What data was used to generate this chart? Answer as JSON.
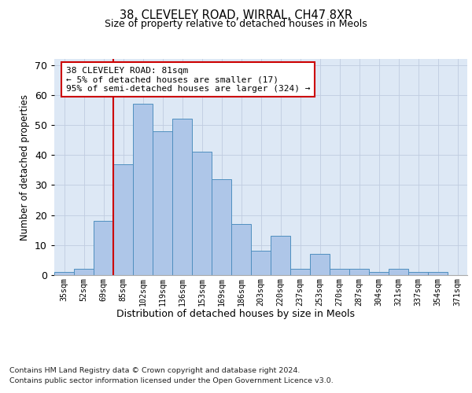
{
  "title1": "38, CLEVELEY ROAD, WIRRAL, CH47 8XR",
  "title2": "Size of property relative to detached houses in Meols",
  "xlabel": "Distribution of detached houses by size in Meols",
  "ylabel": "Number of detached properties",
  "bin_labels": [
    "35sqm",
    "52sqm",
    "69sqm",
    "85sqm",
    "102sqm",
    "119sqm",
    "136sqm",
    "153sqm",
    "169sqm",
    "186sqm",
    "203sqm",
    "220sqm",
    "237sqm",
    "253sqm",
    "270sqm",
    "287sqm",
    "304sqm",
    "321sqm",
    "337sqm",
    "354sqm",
    "371sqm"
  ],
  "bar_values": [
    1,
    2,
    18,
    37,
    57,
    48,
    52,
    41,
    32,
    17,
    8,
    13,
    2,
    7,
    2,
    2,
    1,
    2,
    1,
    1,
    0
  ],
  "bar_color": "#aec6e8",
  "bar_edge_color": "#4f8fbf",
  "vline_x_index": 3,
  "vline_color": "#cc0000",
  "annotation_text": "38 CLEVELEY ROAD: 81sqm\n← 5% of detached houses are smaller (17)\n95% of semi-detached houses are larger (324) →",
  "annotation_box_color": "#ffffff",
  "annotation_box_edge": "#cc0000",
  "ylim": [
    0,
    72
  ],
  "yticks": [
    0,
    10,
    20,
    30,
    40,
    50,
    60,
    70
  ],
  "bg_color": "#dde8f5",
  "footer1": "Contains HM Land Registry data © Crown copyright and database right 2024.",
  "footer2": "Contains public sector information licensed under the Open Government Licence v3.0."
}
